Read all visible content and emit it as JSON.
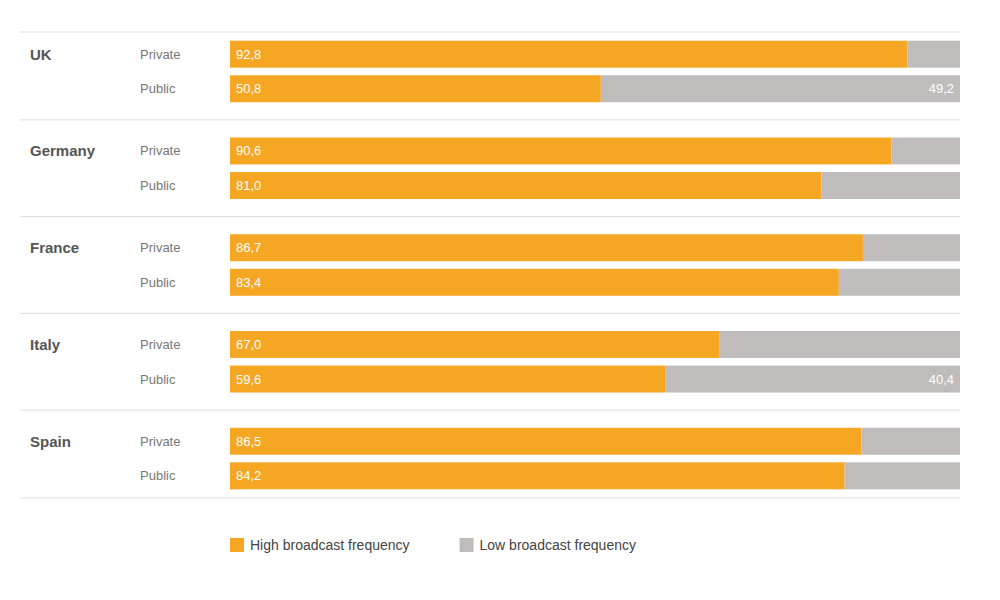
{
  "chart_data": {
    "type": "bar",
    "orientation": "horizontal",
    "stacked": true,
    "data_labels": true,
    "categories": [
      "Private",
      "Public",
      "Private",
      "Public",
      "Private",
      "Public",
      "Private",
      "Public",
      "Private",
      "Public"
    ],
    "category_groups": [
      "UK",
      null,
      "Germany",
      null,
      "France",
      null,
      "Italy",
      null,
      "Spain",
      null
    ],
    "series": [
      {
        "name": "High broadcast frequency",
        "color": "#F5A623",
        "values": [
          92.8,
          50.8,
          90.6,
          81.0,
          86.7,
          83.4,
          67.0,
          59.6,
          86.5,
          84.2
        ],
        "value_labels": [
          "92,8",
          "50,8",
          "90,6",
          "81,0",
          "86,7",
          "83,4",
          "67,0",
          "59,6",
          "86,5",
          "84,2"
        ]
      },
      {
        "name": "Low broadcast frequency",
        "color": "#C0BCBC",
        "values": [
          7.2,
          49.2,
          9.4,
          19.0,
          13.3,
          16.6,
          33.0,
          40.4,
          13.5,
          15.8
        ],
        "value_labels": [
          null,
          "49,2",
          null,
          null,
          null,
          null,
          null,
          "40,4",
          null,
          null
        ]
      }
    ],
    "xlim": [
      0,
      100
    ],
    "tick_labels": false,
    "grid": false,
    "legend": "bottom"
  }
}
